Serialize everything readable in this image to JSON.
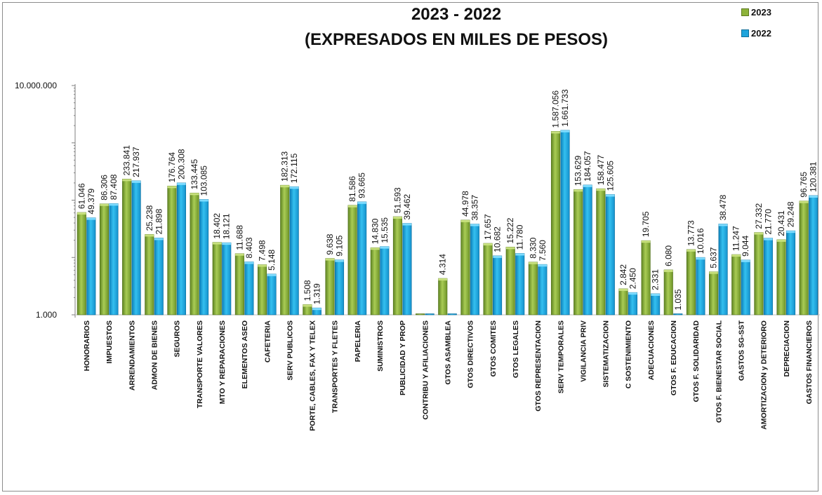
{
  "chart_data": {
    "type": "bar",
    "title_line1": "2023 - 2022",
    "title_line2": "(EXPRESADOS EN MILES DE PESOS)",
    "yscale": "log",
    "ylim": [
      1000,
      10000000
    ],
    "y_ticks": [
      {
        "value": 1000,
        "label": "1.000"
      },
      {
        "value": 10000000,
        "label": "10.000.000"
      }
    ],
    "legend_position": "top-right",
    "categories": [
      "HONORARIOS",
      "IMPUESTOS",
      "ARRENDAMIENTOS",
      "ADMON DE BIENES",
      "SEGUROS",
      "TRANSPORTE VALORES",
      "MTO Y REPARACIONES",
      "ELEMENTOS ASEO",
      "CAFETERIA",
      "SERV PUBLICOS",
      "PORTE, CABLES, FAX Y TELEX",
      "TRANSPORTES Y FLETES",
      "PAPELERIA",
      "SUMINISTROS",
      "PUBLICIDAD Y PROP",
      "CONTRIBU Y AFILIACIONES",
      "GTOS ASAMBLEA",
      "GTOS DIRECTIVOS",
      "GTOS COMITES",
      "GTOS LEGALES",
      "GTOS REPRESENTACION",
      "SERV TEMPORALES",
      "VIGILANCIA PRIV",
      "SISTEMATIZACION",
      "C SOSTENIMIENTO",
      "ADECUACIONES",
      "GTOS F. EDUCACION",
      "GTOS F. SOLIDARIDAD",
      "GTOS F. BIENESTAR SOCIAL",
      "GASTOS SG-SST",
      "AMORTIZACION y DETERIORO",
      "DEPRECIACION",
      "GASTOS FINANCIEROS"
    ],
    "series": [
      {
        "name": "2023",
        "color": "#8db33a",
        "values": [
          61046,
          86306,
          233841,
          25238,
          176764,
          133445,
          18402,
          11688,
          7498,
          182313,
          1508,
          9638,
          81586,
          14830,
          51593,
          900,
          4314,
          44978,
          17657,
          15222,
          8330,
          1587056,
          153629,
          158477,
          2842,
          19705,
          6080,
          13773,
          5637,
          11247,
          27332,
          20431,
          96765
        ],
        "labels": [
          "61.046",
          "86.306",
          "233.841",
          "25.238",
          "176.764",
          "133.445",
          "18.402",
          "11.688",
          "7.498",
          "182.313",
          "1.508",
          "9.638",
          "81.586",
          "14.830",
          "51.593",
          "",
          "4.314",
          "44.978",
          "17.657",
          "15.222",
          "8.330",
          "1.587.056",
          "153.629",
          "158.477",
          "2.842",
          "19.705",
          "6.080",
          "13.773",
          "5.637",
          "11.247",
          "27.332",
          "20.431",
          "96.765"
        ]
      },
      {
        "name": "2022",
        "color": "#1ea4dc",
        "values": [
          49379,
          87408,
          217937,
          21898,
          200308,
          103085,
          18121,
          8403,
          5148,
          172115,
          1319,
          9105,
          93665,
          15535,
          39462,
          950,
          950,
          38357,
          10682,
          11780,
          7560,
          1661733,
          184057,
          125605,
          2450,
          2331,
          1035,
          10016,
          38478,
          9044,
          21770,
          29248,
          120381
        ],
        "labels": [
          "49.379",
          "87.408",
          "217.937",
          "21.898",
          "200.308",
          "103.085",
          "18.121",
          "8.403",
          "5.148",
          "172.115",
          "1.319",
          "9.105",
          "93.665",
          "15.535",
          "39.462",
          "",
          "",
          "38.357",
          "10.682",
          "11.780",
          "7.560",
          "1.661.733",
          "184.057",
          "125.605",
          "2.450",
          "2.331",
          "1.035",
          "10.016",
          "38.478",
          "9.044",
          "21.770",
          "29.248",
          "120.381"
        ]
      }
    ]
  }
}
